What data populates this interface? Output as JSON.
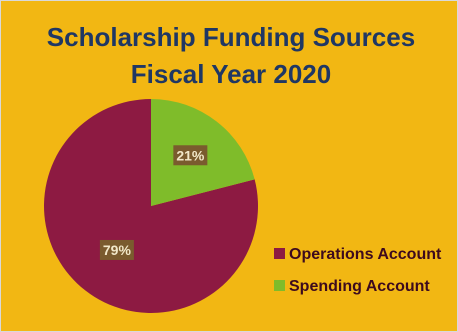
{
  "chart_data": {
    "type": "pie",
    "title": [
      "Scholarship Funding Sources",
      "Fiscal Year 2020"
    ],
    "categories": [
      "Operations Account",
      "Spending Account"
    ],
    "values": [
      79,
      21
    ],
    "labels": [
      "79%",
      "21%"
    ],
    "colors": {
      "background": "#f2b713",
      "Operations Account": "#8d1a42",
      "Spending Account": "#7fbc2a",
      "data_label_fill": "#7a5b2e",
      "title": "#1f3764"
    },
    "legend": "bottom-right"
  }
}
